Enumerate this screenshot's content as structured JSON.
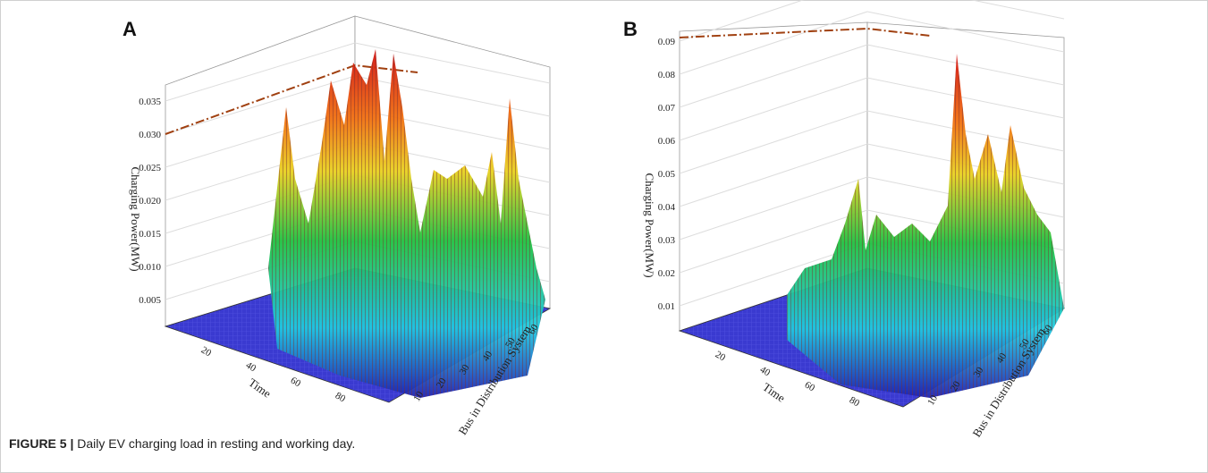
{
  "figure": {
    "panels": [
      {
        "label": "A",
        "z_axis": {
          "title": "Charging Power(MW)",
          "ticks": [
            "0.005",
            "0.010",
            "0.015",
            "0.020",
            "0.025",
            "0.030",
            "0.035"
          ]
        },
        "x_axis": {
          "title": "Time",
          "ticks": [
            "20",
            "40",
            "60",
            "80"
          ]
        },
        "y_axis": {
          "title": "Bus in Distribution System",
          "ticks": [
            "10",
            "20",
            "30",
            "40",
            "50",
            "60"
          ]
        }
      },
      {
        "label": "B",
        "z_axis": {
          "title": "Charging Power(MW)",
          "ticks": [
            "0.01",
            "0.02",
            "0.03",
            "0.04",
            "0.05",
            "0.06",
            "0.07",
            "0.08",
            "0.09"
          ]
        },
        "x_axis": {
          "title": "Time",
          "ticks": [
            "20",
            "40",
            "60",
            "80"
          ]
        },
        "y_axis": {
          "title": "Bus in Distribution System",
          "ticks": [
            "10",
            "20",
            "30",
            "40",
            "50",
            "60"
          ]
        }
      }
    ],
    "caption": {
      "label": "FIGURE 5 |",
      "text": "Daily EV charging load in resting and working day."
    }
  }
}
